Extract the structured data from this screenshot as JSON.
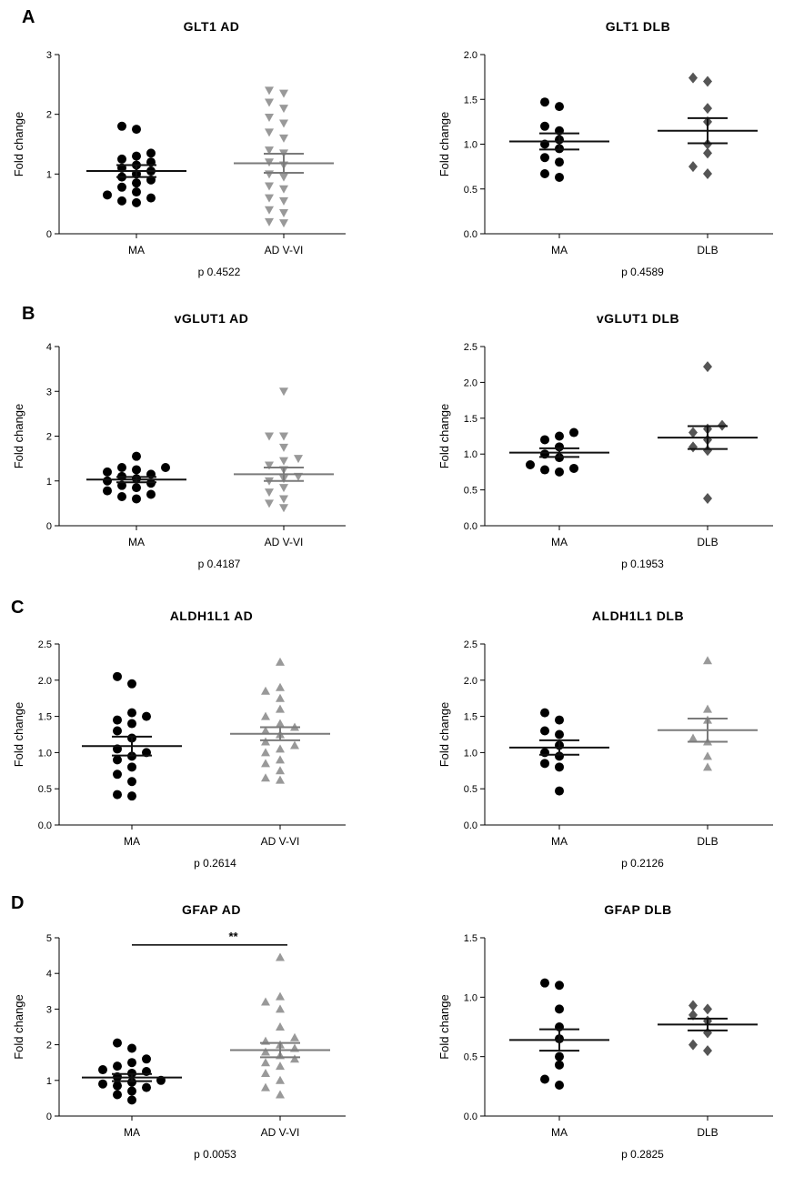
{
  "panel_labels": [
    "A",
    "B",
    "C",
    "D"
  ],
  "colors": {
    "black": "#000000",
    "dark_gray": "#555555",
    "light_gray": "#999999"
  },
  "chart_data": [
    {
      "type": "scatter",
      "title": "GLT1 AD",
      "ylabel": "Fold change",
      "ylim": [
        0,
        3
      ],
      "yticks": [
        "0",
        "1",
        "2",
        "3"
      ],
      "p_value": "p 0.4522",
      "groups": [
        {
          "name": "MA",
          "marker": "circle",
          "color": "#000000",
          "mean": 1.05,
          "sem": 0.1,
          "values": [
            0.52,
            0.55,
            0.6,
            0.65,
            0.7,
            0.78,
            0.85,
            0.9,
            0.95,
            1.0,
            1.05,
            1.1,
            1.15,
            1.2,
            1.25,
            1.3,
            1.35,
            1.75,
            1.8
          ]
        },
        {
          "name": "AD V-VI",
          "marker": "triangle-down",
          "color": "#999999",
          "mean": 1.18,
          "sem": 0.16,
          "values": [
            0.18,
            0.2,
            0.35,
            0.4,
            0.55,
            0.6,
            0.75,
            0.8,
            0.95,
            1.0,
            1.15,
            1.2,
            1.35,
            1.4,
            1.6,
            1.7,
            1.85,
            1.95,
            2.1,
            2.2,
            2.35,
            2.4
          ]
        }
      ]
    },
    {
      "type": "scatter",
      "title": "GLT1 DLB",
      "ylabel": "Fold change",
      "ylim": [
        0,
        2
      ],
      "yticks": [
        "0.0",
        "0.5",
        "1.0",
        "1.5",
        "2.0"
      ],
      "p_value": "p 0.4589",
      "groups": [
        {
          "name": "MA",
          "marker": "circle",
          "color": "#000000",
          "mean": 1.03,
          "sem": 0.09,
          "values": [
            0.63,
            0.67,
            0.8,
            0.85,
            0.95,
            1.0,
            1.05,
            1.15,
            1.2,
            1.42,
            1.47
          ]
        },
        {
          "name": "DLB",
          "marker": "diamond",
          "color": "#555555",
          "mean": 1.15,
          "sem": 0.14,
          "values": [
            0.67,
            0.75,
            0.9,
            1.0,
            1.25,
            1.4,
            1.7,
            1.74
          ]
        }
      ]
    },
    {
      "type": "scatter",
      "title": "vGLUT1 AD",
      "ylabel": "Fold change",
      "ylim": [
        0,
        4
      ],
      "yticks": [
        "0",
        "1",
        "2",
        "3",
        "4"
      ],
      "p_value": "p 0.4187",
      "groups": [
        {
          "name": "MA",
          "marker": "circle",
          "color": "#000000",
          "mean": 1.03,
          "sem": 0.06,
          "values": [
            0.6,
            0.65,
            0.7,
            0.78,
            0.85,
            0.9,
            0.95,
            1.0,
            1.05,
            1.1,
            1.15,
            1.2,
            1.25,
            1.3,
            1.3,
            1.55
          ]
        },
        {
          "name": "AD V-VI",
          "marker": "triangle-down",
          "color": "#999999",
          "mean": 1.15,
          "sem": 0.15,
          "values": [
            0.4,
            0.5,
            0.6,
            0.75,
            0.85,
            1.0,
            1.05,
            1.1,
            1.25,
            1.35,
            1.45,
            1.5,
            1.75,
            2.0,
            2.0,
            3.0
          ]
        }
      ]
    },
    {
      "type": "scatter",
      "title": "vGLUT1 DLB",
      "ylabel": "Fold change",
      "ylim": [
        0,
        2.5
      ],
      "yticks": [
        "0.0",
        "0.5",
        "1.0",
        "1.5",
        "2.0",
        "2.5"
      ],
      "p_value": "p 0.1953",
      "groups": [
        {
          "name": "MA",
          "marker": "circle",
          "color": "#000000",
          "mean": 1.02,
          "sem": 0.06,
          "values": [
            0.75,
            0.78,
            0.8,
            0.85,
            0.95,
            1.0,
            1.1,
            1.2,
            1.25,
            1.3
          ]
        },
        {
          "name": "DLB",
          "marker": "diamond",
          "color": "#555555",
          "mean": 1.23,
          "sem": 0.16,
          "values": [
            0.38,
            1.05,
            1.1,
            1.2,
            1.3,
            1.35,
            1.4,
            2.22
          ]
        }
      ]
    },
    {
      "type": "scatter",
      "title": "ALDH1L1 AD",
      "ylabel": "Fold change",
      "ylim": [
        0,
        2.5
      ],
      "yticks": [
        "0.0",
        "0.5",
        "1.0",
        "1.5",
        "2.0",
        "2.5"
      ],
      "p_value": "p 0.2614",
      "groups": [
        {
          "name": "MA",
          "marker": "circle",
          "color": "#000000",
          "mean": 1.09,
          "sem": 0.13,
          "values": [
            0.4,
            0.42,
            0.6,
            0.7,
            0.8,
            0.9,
            0.95,
            1.0,
            1.05,
            1.2,
            1.3,
            1.4,
            1.45,
            1.5,
            1.55,
            1.95,
            2.05
          ]
        },
        {
          "name": "AD V-VI",
          "marker": "triangle-up",
          "color": "#999999",
          "mean": 1.26,
          "sem": 0.09,
          "values": [
            0.62,
            0.65,
            0.75,
            0.85,
            0.9,
            1.0,
            1.05,
            1.1,
            1.15,
            1.25,
            1.3,
            1.35,
            1.4,
            1.5,
            1.6,
            1.75,
            1.85,
            1.9,
            2.25
          ]
        }
      ]
    },
    {
      "type": "scatter",
      "title": "ALDH1L1 DLB",
      "ylabel": "Fold change",
      "ylim": [
        0,
        2.5
      ],
      "yticks": [
        "0.0",
        "0.5",
        "1.0",
        "1.5",
        "2.0",
        "2.5"
      ],
      "p_value": "p 0.2126",
      "groups": [
        {
          "name": "MA",
          "marker": "circle",
          "color": "#000000",
          "mean": 1.07,
          "sem": 0.1,
          "values": [
            0.47,
            0.8,
            0.85,
            0.95,
            1.0,
            1.1,
            1.25,
            1.3,
            1.45,
            1.55
          ]
        },
        {
          "name": "DLB",
          "marker": "triangle-up",
          "color": "#999999",
          "mean": 1.31,
          "sem": 0.16,
          "values": [
            0.8,
            0.95,
            1.15,
            1.2,
            1.45,
            1.6,
            2.27
          ]
        }
      ]
    },
    {
      "type": "scatter",
      "title": "GFAP AD",
      "ylabel": "Fold change",
      "ylim": [
        0,
        5
      ],
      "yticks": [
        "0",
        "1",
        "2",
        "3",
        "4",
        "5"
      ],
      "p_value": "p 0.0053",
      "significance": {
        "label": "**",
        "level": 4.8
      },
      "groups": [
        {
          "name": "MA",
          "marker": "circle",
          "color": "#000000",
          "mean": 1.08,
          "sem": 0.1,
          "values": [
            0.45,
            0.6,
            0.7,
            0.8,
            0.85,
            0.9,
            0.95,
            1.0,
            1.1,
            1.2,
            1.25,
            1.3,
            1.4,
            1.5,
            1.6,
            1.9,
            2.05
          ]
        },
        {
          "name": "AD V-VI",
          "marker": "triangle-up",
          "color": "#999999",
          "mean": 1.85,
          "sem": 0.2,
          "values": [
            0.6,
            0.8,
            1.0,
            1.2,
            1.4,
            1.5,
            1.6,
            1.7,
            1.8,
            1.9,
            2.0,
            2.1,
            2.2,
            2.5,
            3.0,
            3.2,
            3.35,
            4.45
          ]
        }
      ]
    },
    {
      "type": "scatter",
      "title": "GFAP DLB",
      "ylabel": "Fold change",
      "ylim": [
        0,
        1.5
      ],
      "yticks": [
        "0.0",
        "0.5",
        "1.0",
        "1.5"
      ],
      "p_value": "p 0.2825",
      "groups": [
        {
          "name": "MA",
          "marker": "circle",
          "color": "#000000",
          "mean": 0.64,
          "sem": 0.09,
          "values": [
            0.26,
            0.31,
            0.43,
            0.5,
            0.65,
            0.75,
            0.9,
            1.1,
            1.12
          ]
        },
        {
          "name": "DLB",
          "marker": "diamond",
          "color": "#555555",
          "mean": 0.77,
          "sem": 0.05,
          "values": [
            0.55,
            0.6,
            0.7,
            0.8,
            0.85,
            0.9,
            0.93
          ]
        }
      ]
    }
  ]
}
